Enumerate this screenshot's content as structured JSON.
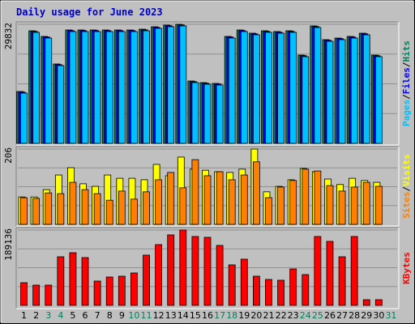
{
  "legend_separator": "/",
  "chart_data": [
    {
      "type": "bar",
      "title": "Daily usage for June 2023",
      "ylim": [
        0,
        29832
      ],
      "yticks": [
        29832
      ],
      "series": [
        {
          "name": "Hits",
          "color": "#00805c",
          "values": [
            12990,
            28210,
            26790,
            19890,
            28410,
            28410,
            28410,
            28410,
            28410,
            28410,
            28610,
            29220,
            29630,
            29832,
            15630,
            15220,
            15020,
            26790,
            28410,
            27600,
            28210,
            28010,
            28210,
            22120,
            29430,
            25980,
            26380,
            26790,
            27600,
            22120,
            null
          ]
        },
        {
          "name": "Files",
          "color": "#0000ff",
          "values": [
            12840,
            28060,
            26640,
            19740,
            28260,
            28260,
            28260,
            28260,
            28260,
            28260,
            28460,
            29070,
            29480,
            29680,
            15480,
            15070,
            14870,
            26640,
            28260,
            27450,
            28060,
            27860,
            28060,
            21970,
            29280,
            25830,
            26230,
            26640,
            27450,
            21970,
            null
          ]
        },
        {
          "name": "Pages",
          "color": "#00c0ff",
          "values": [
            12590,
            27810,
            26390,
            19490,
            28010,
            28010,
            28010,
            28010,
            28010,
            28010,
            28210,
            28820,
            29230,
            29430,
            15230,
            14820,
            14620,
            26390,
            28010,
            27200,
            27810,
            27610,
            27810,
            21720,
            29030,
            25580,
            25980,
            26390,
            27200,
            21720,
            null
          ]
        }
      ]
    },
    {
      "type": "bar",
      "ylim": [
        0,
        206
      ],
      "yticks": [
        206
      ],
      "series": [
        {
          "name": "Visits",
          "color": "#ffff00",
          "values": [
            75,
            75,
            95,
            135,
            155,
            111,
            104,
            135,
            126,
            126,
            122,
            164,
            133,
            184,
            151,
            148,
            144,
            142,
            151,
            206,
            89,
            104,
            122,
            153,
            144,
            124,
            109,
            126,
            120,
            115,
            null
          ]
        },
        {
          "name": "Sites",
          "color": "#ff8000",
          "values": [
            73,
            71,
            86,
            84,
            115,
            95,
            84,
            66,
            91,
            69,
            89,
            122,
            142,
            100,
            177,
            133,
            144,
            122,
            135,
            171,
            73,
            102,
            120,
            151,
            146,
            106,
            91,
            102,
            115,
            104,
            null
          ]
        }
      ]
    },
    {
      "type": "bar",
      "ylim": [
        0,
        189136
      ],
      "yticks": [
        189136
      ],
      "categories": [
        "1",
        "2",
        "3",
        "4",
        "5",
        "6",
        "7",
        "8",
        "9",
        "10",
        "11",
        "12",
        "13",
        "14",
        "15",
        "16",
        "17",
        "18",
        "19",
        "20",
        "21",
        "22",
        "23",
        "24",
        "25",
        "26",
        "27",
        "28",
        "29",
        "30",
        "31"
      ],
      "category_colors": [
        "#000000",
        "#000000",
        "#00805c",
        "#00805c",
        "#000000",
        "#000000",
        "#000000",
        "#000000",
        "#000000",
        "#00805c",
        "#00805c",
        "#000000",
        "#000000",
        "#000000",
        "#000000",
        "#000000",
        "#00805c",
        "#00805c",
        "#000000",
        "#000000",
        "#000000",
        "#000000",
        "#000000",
        "#00805c",
        "#00805c",
        "#000000",
        "#000000",
        "#000000",
        "#000000",
        "#000000",
        "#00805c"
      ],
      "series": [
        {
          "name": "KBytes",
          "color": "#ff0000",
          "values": [
            56950,
            50850,
            50850,
            122040,
            132210,
            120000,
            61020,
            71190,
            73220,
            81360,
            126110,
            152550,
            176960,
            189136,
            172890,
            170860,
            150520,
            101700,
            115940,
            73220,
            65090,
            63050,
            91530,
            77290,
            172890,
            160690,
            122040,
            172890,
            14240,
            14240,
            null
          ]
        }
      ]
    }
  ]
}
